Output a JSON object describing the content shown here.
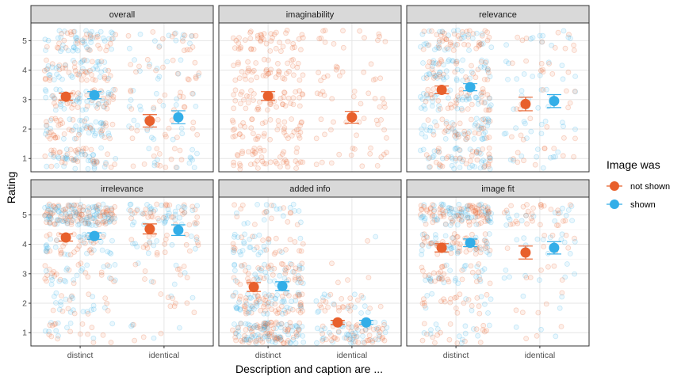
{
  "chart_data": {
    "type": "scatter",
    "xlabel": "Description and caption are ...",
    "ylabel": "Rating",
    "categories": [
      "distinct",
      "identical"
    ],
    "yticks": [
      1,
      2,
      3,
      4,
      5
    ],
    "ylim": [
      0.55,
      5.6
    ],
    "grid": true,
    "legend": {
      "title": "Image was",
      "placement": "right",
      "items": [
        {
          "label": "not shown",
          "color": "#E8602C"
        },
        {
          "label": "shown",
          "color": "#33AEE8"
        }
      ]
    },
    "panels": [
      {
        "title": "overall",
        "points": [
          {
            "category": "distinct",
            "group": "not shown",
            "mean": 3.1,
            "lower": 2.98,
            "upper": 3.22
          },
          {
            "category": "distinct",
            "group": "shown",
            "mean": 3.15,
            "lower": 3.03,
            "upper": 3.27
          },
          {
            "category": "identical",
            "group": "not shown",
            "mean": 2.28,
            "lower": 2.07,
            "upper": 2.49
          },
          {
            "category": "identical",
            "group": "shown",
            "mean": 2.4,
            "lower": 2.18,
            "upper": 2.62
          }
        ]
      },
      {
        "title": "imaginability",
        "points": [
          {
            "category": "distinct",
            "group": "not shown",
            "mean": 3.12,
            "lower": 2.97,
            "upper": 3.27
          },
          {
            "category": "identical",
            "group": "not shown",
            "mean": 2.4,
            "lower": 2.2,
            "upper": 2.6
          }
        ]
      },
      {
        "title": "relevance",
        "points": [
          {
            "category": "distinct",
            "group": "not shown",
            "mean": 3.33,
            "lower": 3.2,
            "upper": 3.46
          },
          {
            "category": "distinct",
            "group": "shown",
            "mean": 3.42,
            "lower": 3.3,
            "upper": 3.54
          },
          {
            "category": "identical",
            "group": "not shown",
            "mean": 2.85,
            "lower": 2.62,
            "upper": 3.08
          },
          {
            "category": "identical",
            "group": "shown",
            "mean": 2.95,
            "lower": 2.73,
            "upper": 3.17
          }
        ]
      },
      {
        "title": "irrelevance",
        "points": [
          {
            "category": "distinct",
            "group": "not shown",
            "mean": 4.23,
            "lower": 4.11,
            "upper": 4.35
          },
          {
            "category": "distinct",
            "group": "shown",
            "mean": 4.28,
            "lower": 4.17,
            "upper": 4.39
          },
          {
            "category": "identical",
            "group": "not shown",
            "mean": 4.52,
            "lower": 4.35,
            "upper": 4.69
          },
          {
            "category": "identical",
            "group": "shown",
            "mean": 4.48,
            "lower": 4.3,
            "upper": 4.66
          }
        ]
      },
      {
        "title": "added info",
        "points": [
          {
            "category": "distinct",
            "group": "not shown",
            "mean": 2.55,
            "lower": 2.4,
            "upper": 2.7
          },
          {
            "category": "distinct",
            "group": "shown",
            "mean": 2.58,
            "lower": 2.43,
            "upper": 2.73
          },
          {
            "category": "identical",
            "group": "not shown",
            "mean": 1.35,
            "lower": 1.28,
            "upper": 1.42
          },
          {
            "category": "identical",
            "group": "shown",
            "mean": 1.35,
            "lower": 1.28,
            "upper": 1.42
          }
        ]
      },
      {
        "title": "image fit",
        "points": [
          {
            "category": "distinct",
            "group": "not shown",
            "mean": 3.88,
            "lower": 3.74,
            "upper": 4.02
          },
          {
            "category": "distinct",
            "group": "shown",
            "mean": 4.05,
            "lower": 3.92,
            "upper": 4.18
          },
          {
            "category": "identical",
            "group": "not shown",
            "mean": 3.72,
            "lower": 3.5,
            "upper": 3.94
          },
          {
            "category": "identical",
            "group": "shown",
            "mean": 3.88,
            "lower": 3.67,
            "upper": 4.09
          }
        ]
      }
    ]
  }
}
